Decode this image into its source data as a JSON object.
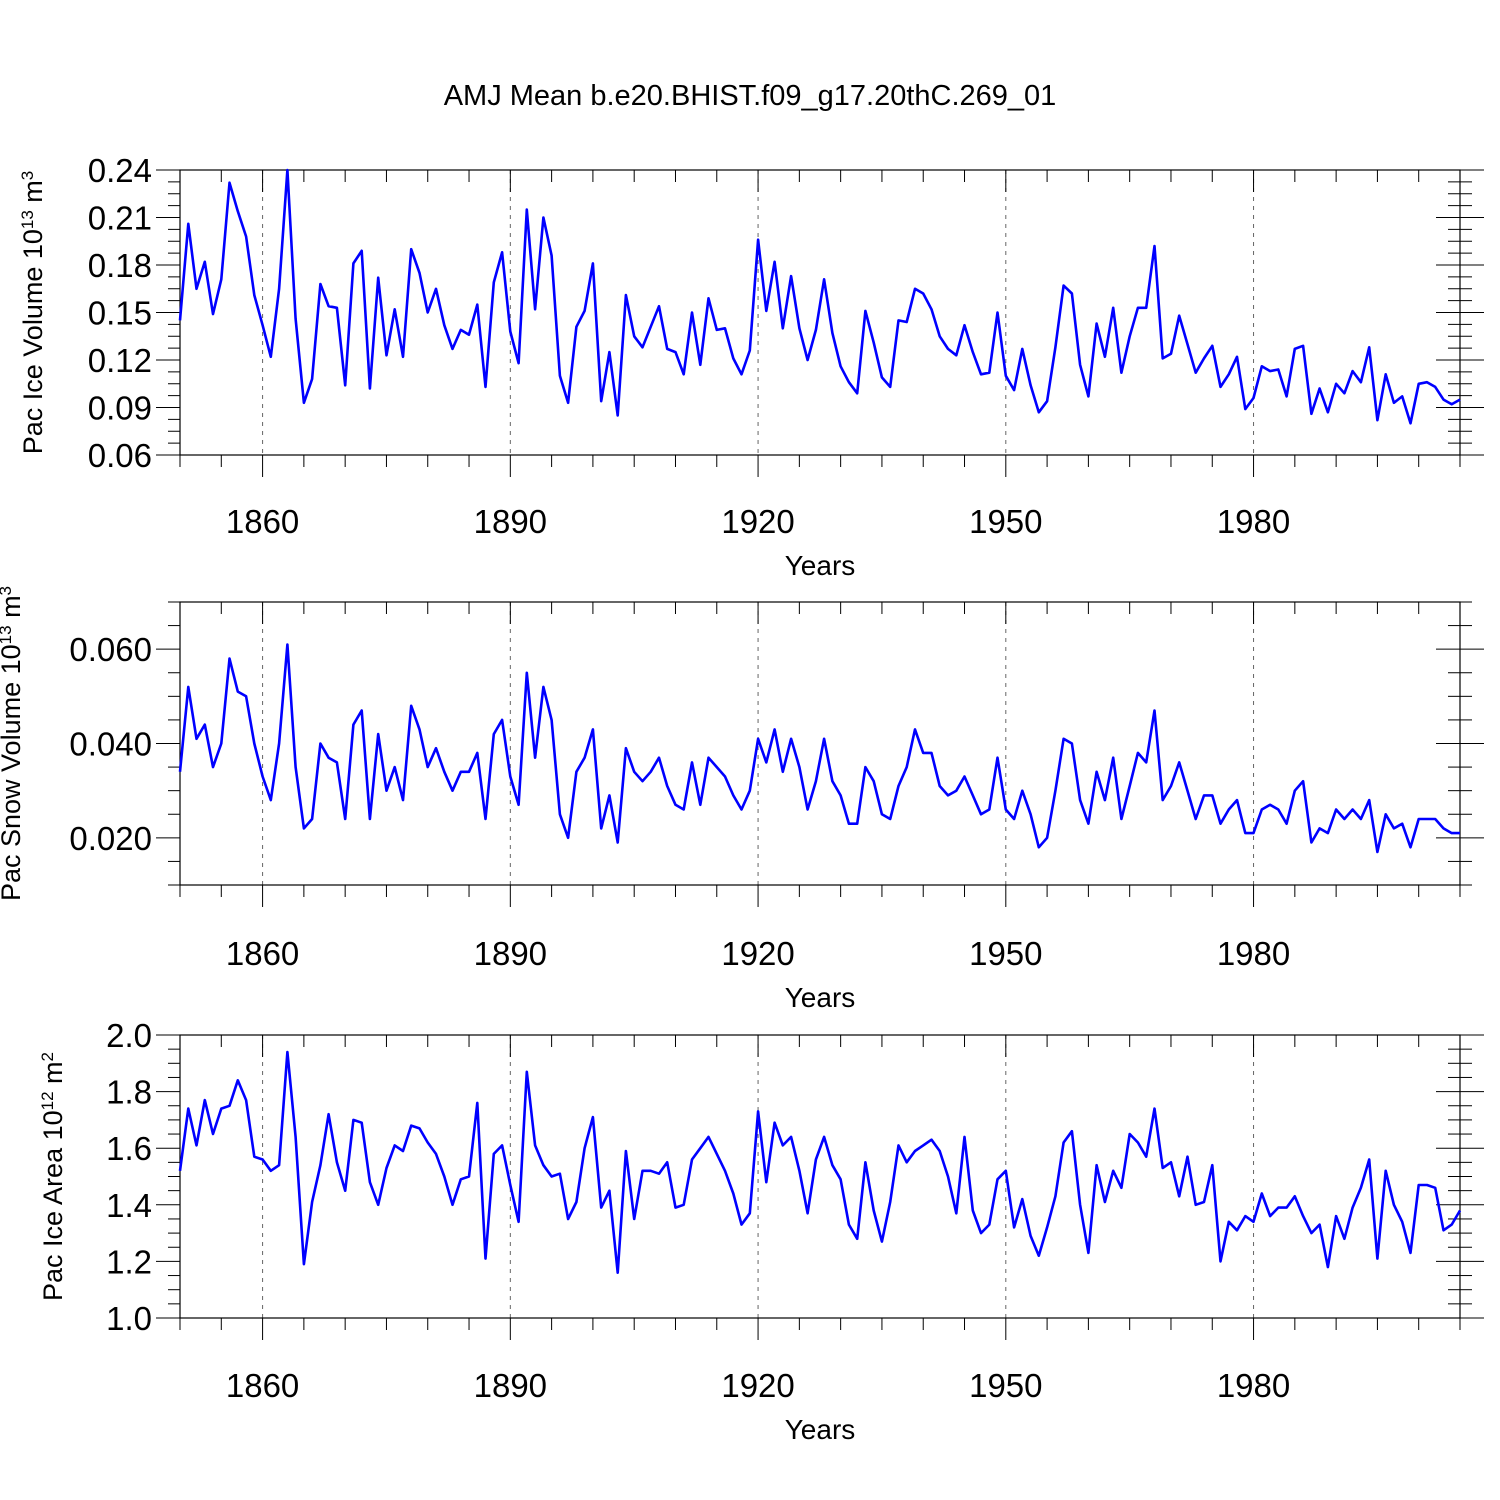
{
  "title": "AMJ Mean b.e20.BHIST.f09_g17.20thC.269_01",
  "chart_data": [
    {
      "type": "line",
      "name": "ice-volume",
      "ylabel_text": "Pac Ice Volume 10",
      "ylabel_exp": "13",
      "ylabel_unit": " m",
      "ylabel_unit_exp": "3",
      "xlabel": "Years",
      "xlim": [
        1850,
        2005
      ],
      "ylim": [
        0.06,
        0.24
      ],
      "xticks": [
        1860,
        1890,
        1920,
        1950,
        1980
      ],
      "xtick_labels": [
        "1860",
        "1890",
        "1920",
        "1950",
        "1980"
      ],
      "yticks": [
        0.06,
        0.09,
        0.12,
        0.15,
        0.18,
        0.21,
        0.24
      ],
      "ytick_labels": [
        "0.06",
        "0.09",
        "0.12",
        "0.15",
        "0.18",
        "0.21",
        "0.24"
      ],
      "start_year": 1850,
      "color": "#0000ff",
      "values": [
        0.145,
        0.206,
        0.165,
        0.182,
        0.149,
        0.171,
        0.232,
        0.214,
        0.198,
        0.161,
        0.142,
        0.122,
        0.165,
        0.24,
        0.146,
        0.093,
        0.108,
        0.168,
        0.154,
        0.153,
        0.104,
        0.181,
        0.189,
        0.102,
        0.172,
        0.123,
        0.152,
        0.122,
        0.19,
        0.175,
        0.15,
        0.165,
        0.142,
        0.127,
        0.139,
        0.136,
        0.155,
        0.103,
        0.169,
        0.188,
        0.138,
        0.118,
        0.215,
        0.152,
        0.21,
        0.186,
        0.11,
        0.093,
        0.141,
        0.151,
        0.181,
        0.094,
        0.125,
        0.085,
        0.161,
        0.135,
        0.128,
        0.141,
        0.154,
        0.127,
        0.125,
        0.111,
        0.15,
        0.117,
        0.159,
        0.139,
        0.14,
        0.121,
        0.111,
        0.126,
        0.196,
        0.151,
        0.182,
        0.14,
        0.173,
        0.14,
        0.12,
        0.139,
        0.171,
        0.137,
        0.116,
        0.106,
        0.099,
        0.151,
        0.131,
        0.109,
        0.103,
        0.145,
        0.144,
        0.165,
        0.162,
        0.152,
        0.135,
        0.127,
        0.123,
        0.142,
        0.125,
        0.111,
        0.112,
        0.15,
        0.11,
        0.101,
        0.127,
        0.104,
        0.087,
        0.094,
        0.128,
        0.167,
        0.162,
        0.117,
        0.097,
        0.143,
        0.122,
        0.153,
        0.112,
        0.135,
        0.153,
        0.153,
        0.192,
        0.121,
        0.124,
        0.148,
        0.13,
        0.112,
        0.121,
        0.129,
        0.103,
        0.111,
        0.122,
        0.089,
        0.096,
        0.116,
        0.113,
        0.114,
        0.097,
        0.127,
        0.129,
        0.086,
        0.102,
        0.087,
        0.105,
        0.099,
        0.113,
        0.106,
        0.128,
        0.082,
        0.111,
        0.093,
        0.097,
        0.08,
        0.105,
        0.106,
        0.103,
        0.095,
        0.092,
        0.095
      ]
    },
    {
      "type": "line",
      "name": "snow-volume",
      "ylabel_text": "Pac Snow Volume 10",
      "ylabel_exp": "13",
      "ylabel_unit": " m",
      "ylabel_unit_exp": "3",
      "xlabel": "Years",
      "xlim": [
        1850,
        2005
      ],
      "ylim": [
        0.01,
        0.07
      ],
      "xticks": [
        1860,
        1890,
        1920,
        1950,
        1980
      ],
      "xtick_labels": [
        "1860",
        "1890",
        "1920",
        "1950",
        "1980"
      ],
      "yticks": [
        0.02,
        0.04,
        0.06
      ],
      "ytick_labels": [
        "0.020",
        "0.040",
        "0.060"
      ],
      "start_year": 1850,
      "color": "#0000ff",
      "values": [
        0.034,
        0.052,
        0.041,
        0.044,
        0.035,
        0.04,
        0.058,
        0.051,
        0.05,
        0.04,
        0.033,
        0.028,
        0.04,
        0.061,
        0.035,
        0.022,
        0.024,
        0.04,
        0.037,
        0.036,
        0.024,
        0.044,
        0.047,
        0.024,
        0.042,
        0.03,
        0.035,
        0.028,
        0.048,
        0.043,
        0.035,
        0.039,
        0.034,
        0.03,
        0.034,
        0.034,
        0.038,
        0.024,
        0.042,
        0.045,
        0.033,
        0.027,
        0.055,
        0.037,
        0.052,
        0.045,
        0.025,
        0.02,
        0.034,
        0.037,
        0.043,
        0.022,
        0.029,
        0.019,
        0.039,
        0.034,
        0.032,
        0.034,
        0.037,
        0.031,
        0.027,
        0.026,
        0.036,
        0.027,
        0.037,
        0.035,
        0.033,
        0.029,
        0.026,
        0.03,
        0.041,
        0.036,
        0.043,
        0.034,
        0.041,
        0.035,
        0.026,
        0.032,
        0.041,
        0.032,
        0.029,
        0.023,
        0.023,
        0.035,
        0.032,
        0.025,
        0.024,
        0.031,
        0.035,
        0.043,
        0.038,
        0.038,
        0.031,
        0.029,
        0.03,
        0.033,
        0.029,
        0.025,
        0.026,
        0.037,
        0.026,
        0.024,
        0.03,
        0.025,
        0.018,
        0.02,
        0.03,
        0.041,
        0.04,
        0.028,
        0.023,
        0.034,
        0.028,
        0.037,
        0.024,
        0.031,
        0.038,
        0.036,
        0.047,
        0.028,
        0.031,
        0.036,
        0.03,
        0.024,
        0.029,
        0.029,
        0.023,
        0.026,
        0.028,
        0.021,
        0.021,
        0.026,
        0.027,
        0.026,
        0.023,
        0.03,
        0.032,
        0.019,
        0.022,
        0.021,
        0.026,
        0.024,
        0.026,
        0.024,
        0.028,
        0.017,
        0.025,
        0.022,
        0.023,
        0.018,
        0.024,
        0.024,
        0.024,
        0.022,
        0.021,
        0.021
      ]
    },
    {
      "type": "line",
      "name": "ice-area",
      "ylabel_text": "Pac Ice Area 10",
      "ylabel_exp": "12",
      "ylabel_unit": " m",
      "ylabel_unit_exp": "2",
      "xlabel": "Years",
      "xlim": [
        1850,
        2005
      ],
      "ylim": [
        1.0,
        2.0
      ],
      "xticks": [
        1860,
        1890,
        1920,
        1950,
        1980
      ],
      "xtick_labels": [
        "1860",
        "1890",
        "1920",
        "1950",
        "1980"
      ],
      "yticks": [
        1.0,
        1.2,
        1.4,
        1.6,
        1.8,
        2.0
      ],
      "ytick_labels": [
        "1.0",
        "1.2",
        "1.4",
        "1.6",
        "1.8",
        "2.0"
      ],
      "start_year": 1850,
      "color": "#0000ff",
      "values": [
        1.52,
        1.74,
        1.61,
        1.77,
        1.65,
        1.74,
        1.75,
        1.84,
        1.77,
        1.57,
        1.56,
        1.52,
        1.54,
        1.94,
        1.64,
        1.19,
        1.41,
        1.54,
        1.72,
        1.55,
        1.45,
        1.7,
        1.69,
        1.48,
        1.4,
        1.53,
        1.61,
        1.59,
        1.68,
        1.67,
        1.62,
        1.58,
        1.5,
        1.4,
        1.49,
        1.5,
        1.76,
        1.21,
        1.58,
        1.61,
        1.47,
        1.34,
        1.87,
        1.61,
        1.54,
        1.5,
        1.51,
        1.35,
        1.41,
        1.6,
        1.71,
        1.39,
        1.45,
        1.16,
        1.59,
        1.35,
        1.52,
        1.52,
        1.51,
        1.55,
        1.39,
        1.4,
        1.56,
        1.6,
        1.64,
        1.58,
        1.52,
        1.44,
        1.33,
        1.37,
        1.73,
        1.48,
        1.69,
        1.61,
        1.64,
        1.52,
        1.37,
        1.56,
        1.64,
        1.54,
        1.49,
        1.33,
        1.28,
        1.55,
        1.38,
        1.27,
        1.41,
        1.61,
        1.55,
        1.59,
        1.61,
        1.63,
        1.59,
        1.5,
        1.37,
        1.64,
        1.38,
        1.3,
        1.33,
        1.49,
        1.52,
        1.32,
        1.42,
        1.29,
        1.22,
        1.32,
        1.43,
        1.62,
        1.66,
        1.4,
        1.23,
        1.54,
        1.41,
        1.52,
        1.46,
        1.65,
        1.62,
        1.57,
        1.74,
        1.53,
        1.55,
        1.43,
        1.57,
        1.4,
        1.41,
        1.54,
        1.2,
        1.34,
        1.31,
        1.36,
        1.34,
        1.44,
        1.36,
        1.39,
        1.39,
        1.43,
        1.36,
        1.3,
        1.33,
        1.18,
        1.36,
        1.28,
        1.39,
        1.46,
        1.56,
        1.21,
        1.52,
        1.4,
        1.34,
        1.23,
        1.47,
        1.47,
        1.46,
        1.31,
        1.33,
        1.38
      ]
    }
  ]
}
